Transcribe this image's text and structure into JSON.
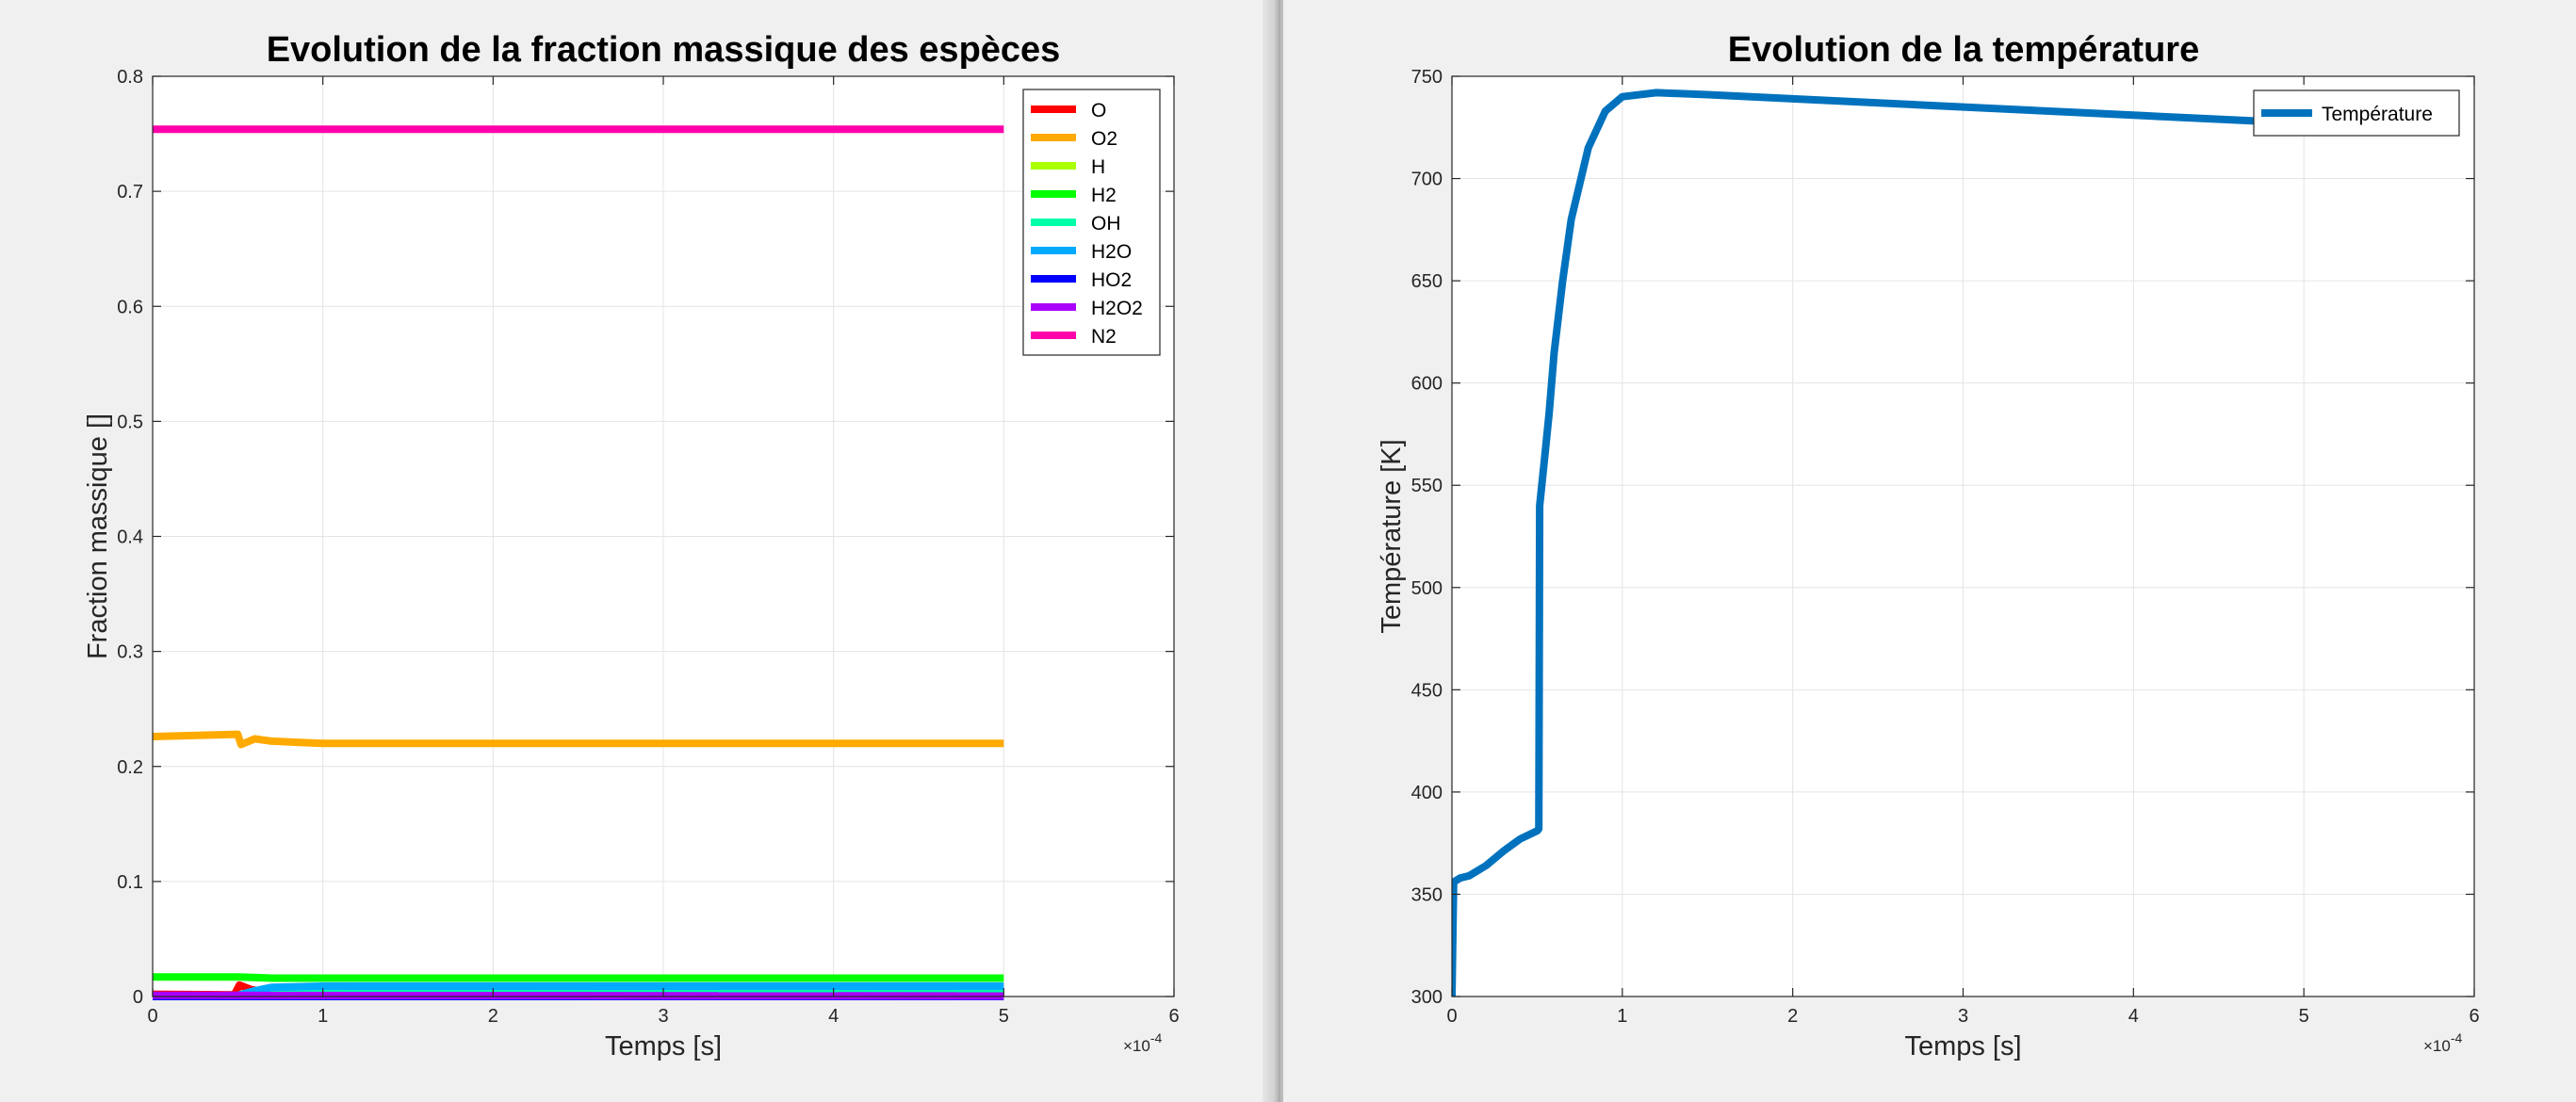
{
  "chart_data": [
    {
      "type": "line",
      "title": "Evolution de la fraction massique des espèces",
      "xlabel": "Temps [s]",
      "ylabel": "Fraction massique []",
      "x_exponent": "×10",
      "x_exponent_power": "-4",
      "xlim": [
        0,
        6
      ],
      "ylim": [
        0,
        0.8
      ],
      "xticks": [
        0,
        1,
        2,
        3,
        4,
        5,
        6
      ],
      "yticks": [
        0,
        0.1,
        0.2,
        0.3,
        0.4,
        0.5,
        0.6,
        0.7,
        0.8
      ],
      "grid": true,
      "legend_position": "top-right",
      "series": [
        {
          "name": "O",
          "color": "#ff0000",
          "points": [
            [
              0,
              0.002
            ],
            [
              0.48,
              0.0015
            ],
            [
              0.51,
              0.01
            ],
            [
              0.58,
              0.006
            ],
            [
              0.7,
              0.003
            ],
            [
              1,
              0.001
            ],
            [
              5,
              0.0005
            ]
          ]
        },
        {
          "name": "O2",
          "color": "#ffaa00",
          "points": [
            [
              0,
              0.226
            ],
            [
              0.5,
              0.228
            ],
            [
              0.52,
              0.219
            ],
            [
              0.6,
              0.224
            ],
            [
              0.7,
              0.222
            ],
            [
              0.85,
              0.221
            ],
            [
              1,
              0.22
            ],
            [
              5,
              0.22
            ]
          ]
        },
        {
          "name": "H",
          "color": "#aaff00",
          "points": [
            [
              0,
              0.0005
            ],
            [
              5,
              0.0003
            ]
          ]
        },
        {
          "name": "H2",
          "color": "#00ff00",
          "points": [
            [
              0,
              0.017
            ],
            [
              0.5,
              0.017
            ],
            [
              0.7,
              0.016
            ],
            [
              1,
              0.016
            ],
            [
              5,
              0.016
            ]
          ]
        },
        {
          "name": "OH",
          "color": "#00ffaa",
          "points": [
            [
              0,
              0.0
            ],
            [
              0.5,
              0.0005
            ],
            [
              0.6,
              0.005
            ],
            [
              1,
              0.006
            ],
            [
              5,
              0.006
            ]
          ]
        },
        {
          "name": "H2O",
          "color": "#00aaff",
          "points": [
            [
              0,
              0.0
            ],
            [
              0.5,
              0.001
            ],
            [
              0.6,
              0.005
            ],
            [
              0.7,
              0.008
            ],
            [
              1,
              0.009
            ],
            [
              5,
              0.009
            ]
          ]
        },
        {
          "name": "HO2",
          "color": "#0000ff",
          "points": [
            [
              0,
              0.0
            ],
            [
              5,
              0.0
            ]
          ]
        },
        {
          "name": "H2O2",
          "color": "#aa00ff",
          "points": [
            [
              0,
              0.001
            ],
            [
              5,
              0.0005
            ]
          ]
        },
        {
          "name": "N2",
          "color": "#ff00aa",
          "points": [
            [
              0,
              0.754
            ],
            [
              5,
              0.754
            ]
          ]
        }
      ]
    },
    {
      "type": "line",
      "title": "Evolution de la température",
      "xlabel": "Temps [s]",
      "ylabel": "Température [K]",
      "x_exponent": "×10",
      "x_exponent_power": "-4",
      "xlim": [
        0,
        6
      ],
      "ylim": [
        300,
        750
      ],
      "xticks": [
        0,
        1,
        2,
        3,
        4,
        5,
        6
      ],
      "yticks": [
        300,
        350,
        400,
        450,
        500,
        550,
        600,
        650,
        700,
        750
      ],
      "grid": true,
      "legend_position": "top-right",
      "series": [
        {
          "name": "Température",
          "color": "#0072bd",
          "points": [
            [
              0,
              300
            ],
            [
              0.01,
              356
            ],
            [
              0.05,
              358
            ],
            [
              0.1,
              359
            ],
            [
              0.2,
              364
            ],
            [
              0.3,
              371
            ],
            [
              0.4,
              377
            ],
            [
              0.5,
              381
            ],
            [
              0.51,
              382
            ],
            [
              0.515,
              540
            ],
            [
              0.54,
              560
            ],
            [
              0.57,
              585
            ],
            [
              0.6,
              615
            ],
            [
              0.65,
              650
            ],
            [
              0.7,
              680
            ],
            [
              0.8,
              715
            ],
            [
              0.9,
              733
            ],
            [
              1.0,
              740
            ],
            [
              1.2,
              742
            ],
            [
              1.5,
              741
            ],
            [
              2,
              739
            ],
            [
              3,
              735
            ],
            [
              4,
              731
            ],
            [
              5,
              727
            ]
          ]
        }
      ]
    }
  ]
}
